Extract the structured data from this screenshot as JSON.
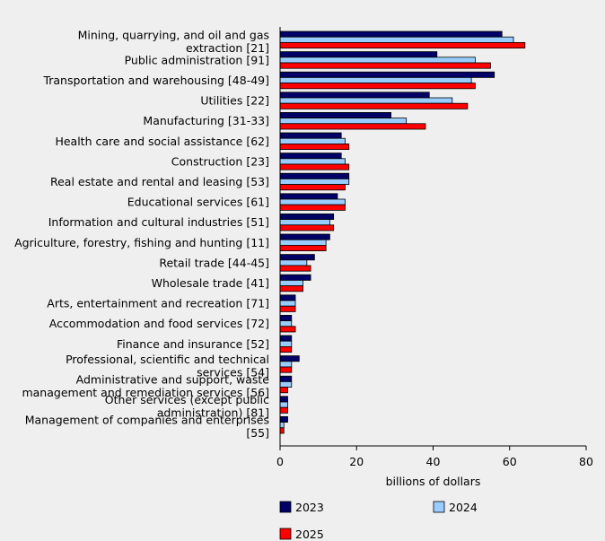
{
  "chart_data": {
    "type": "bar",
    "orientation": "horizontal",
    "categories": [
      "Mining, quarrying, and oil and gas extraction [21]",
      "Public administration [91]",
      "Transportation and warehousing [48-49]",
      "Utilities [22]",
      "Manufacturing [31-33]",
      "Health care and social assistance [62]",
      "Construction [23]",
      "Real estate and rental and leasing [53]",
      "Educational services [61]",
      "Information and cultural industries [51]",
      "Agriculture, forestry, fishing and hunting [11]",
      "Retail trade [44-45]",
      "Wholesale trade [41]",
      "Arts, entertainment and recreation [71]",
      "Accommodation and food services [72]",
      "Finance and insurance [52]",
      "Professional, scientific and technical services [54]",
      "Administrative and support, waste management and remediation services [56]",
      "Other services (except public administration) [81]",
      "Management of companies and enterprises [55]"
    ],
    "category_lines": [
      [
        "Mining, quarrying, and oil and gas",
        "extraction [21]"
      ],
      [
        "Public administration [91]"
      ],
      [
        "Transportation and warehousing [48-49]"
      ],
      [
        "Utilities [22]"
      ],
      [
        "Manufacturing [31-33]"
      ],
      [
        "Health care and social assistance [62]"
      ],
      [
        "Construction [23]"
      ],
      [
        "Real estate and rental and leasing [53]"
      ],
      [
        "Educational services [61]"
      ],
      [
        "Information and cultural industries [51]"
      ],
      [
        "Agriculture, forestry, fishing and hunting [11]"
      ],
      [
        "Retail trade [44-45]"
      ],
      [
        "Wholesale trade [41]"
      ],
      [
        "Arts, entertainment and recreation [71]"
      ],
      [
        "Accommodation and food services [72]"
      ],
      [
        "Finance and insurance [52]"
      ],
      [
        "Professional, scientific and technical",
        "services [54]"
      ],
      [
        "Administrative and support, waste",
        "management and remediation services [56]"
      ],
      [
        "Other services (except public",
        "administration) [81]"
      ],
      [
        "Management of companies and enterprises",
        "[55]"
      ]
    ],
    "series": [
      {
        "name": "2023",
        "color": "#000066",
        "values": [
          58,
          41,
          56,
          39,
          29,
          16,
          16,
          18,
          15,
          14,
          13,
          9,
          8,
          4,
          3,
          3,
          5,
          3,
          2,
          2
        ]
      },
      {
        "name": "2024",
        "color": "#99ccff",
        "values": [
          61,
          51,
          50,
          45,
          33,
          17,
          17,
          18,
          17,
          13,
          12,
          7,
          6,
          4,
          3,
          3,
          3,
          3,
          2,
          1
        ]
      },
      {
        "name": "2025",
        "color": "#ff0000",
        "values": [
          64,
          55,
          51,
          49,
          38,
          18,
          18,
          17,
          17,
          14,
          12,
          8,
          6,
          4,
          4,
          3,
          3,
          2,
          2,
          1
        ]
      }
    ],
    "xlabel": "billions of dollars",
    "xlim": [
      0,
      80
    ],
    "xticks": [
      0,
      20,
      40,
      60,
      80
    ],
    "grid": false,
    "legend_position": "bottom"
  }
}
